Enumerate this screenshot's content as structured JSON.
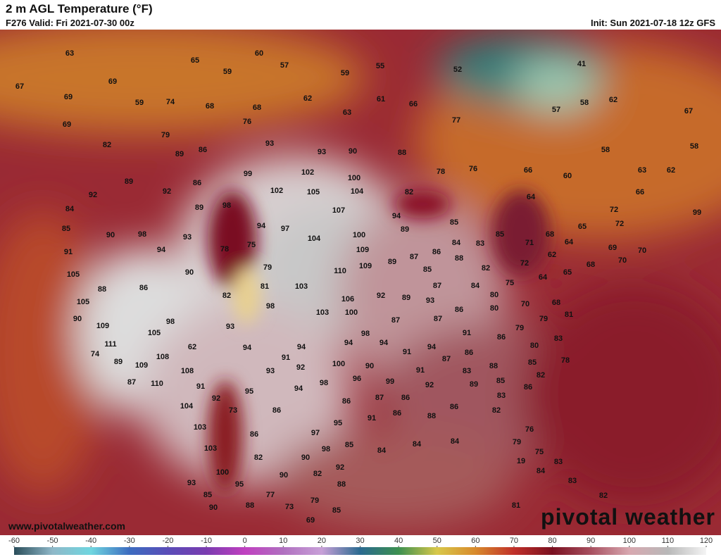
{
  "header": {
    "title": "2 m AGL Temperature (°F)",
    "valid": "F276 Valid: Fri 2021-07-30 00z",
    "init": "Init: Sun 2021-07-18 12z GFS"
  },
  "footer": {
    "url": "www.pivotalweather.com",
    "brand": "pivotal weather"
  },
  "map_labels": [
    63,
    60,
    65,
    57,
    59,
    59,
    55,
    52,
    41,
    67,
    69,
    69,
    59,
    74,
    68,
    68,
    62,
    61,
    66,
    57,
    58,
    62,
    67,
    63,
    69,
    76,
    77,
    79,
    82,
    86,
    89,
    93,
    93,
    90,
    88,
    58,
    58,
    66,
    60,
    63,
    62,
    99,
    102,
    100,
    78,
    76,
    89,
    92,
    86,
    102,
    105,
    104,
    82,
    66,
    92,
    64,
    84,
    89,
    98,
    107,
    94,
    85,
    72,
    99,
    85,
    90,
    98,
    94,
    97,
    104,
    100,
    89,
    72,
    65,
    93,
    94,
    78,
    75,
    109,
    84,
    83,
    85,
    68,
    64,
    69,
    70,
    91,
    86,
    87,
    89,
    88,
    71,
    62,
    72,
    109,
    110,
    79,
    85,
    82,
    65,
    68,
    70,
    105,
    90,
    64,
    88,
    86,
    82,
    81,
    103,
    87,
    84,
    75,
    105,
    106,
    92,
    89,
    93,
    80,
    98,
    103,
    100,
    86,
    80,
    70,
    68,
    90,
    109,
    98,
    93,
    87,
    87,
    79,
    81,
    105,
    98,
    91,
    79,
    86,
    83,
    111,
    62,
    94,
    94,
    94,
    94,
    91,
    94,
    80,
    74,
    108,
    91,
    86,
    87,
    85,
    78,
    89,
    109,
    100,
    90,
    92,
    93,
    88,
    108,
    83,
    91,
    82,
    87,
    110,
    98,
    96,
    99,
    85,
    89,
    91,
    95,
    94,
    92,
    83,
    86,
    92,
    87,
    86,
    86,
    104,
    73,
    86,
    86,
    82,
    88,
    86,
    91,
    95,
    103,
    86,
    97,
    85,
    84,
    84,
    84,
    76,
    103,
    98,
    82,
    90,
    79,
    75,
    19,
    100,
    92,
    82,
    90,
    84,
    83,
    93,
    95,
    88,
    85,
    77,
    79,
    82,
    83,
    90,
    88,
    73,
    85,
    69,
    81
  ],
  "colorbar": {
    "range": [
      -60,
      120
    ],
    "ticks": [
      -60,
      -50,
      -40,
      -30,
      -20,
      -10,
      0,
      10,
      20,
      30,
      40,
      50,
      60,
      70,
      80,
      90,
      100,
      110,
      120
    ],
    "colors": [
      "#2a4d5a",
      "#8fb8c8",
      "#6fd6e0",
      "#3c6cc0",
      "#5a4db8",
      "#7a3cb0",
      "#c040c0",
      "#b070c0",
      "#c8a0d8",
      "#2a6a90",
      "#3c9050",
      "#d8c84a",
      "#d88a2c",
      "#c0302a",
      "#7a1020",
      "#a85060",
      "#d8a8b0",
      "#b8b8b8",
      "#f4f4f4"
    ]
  }
}
